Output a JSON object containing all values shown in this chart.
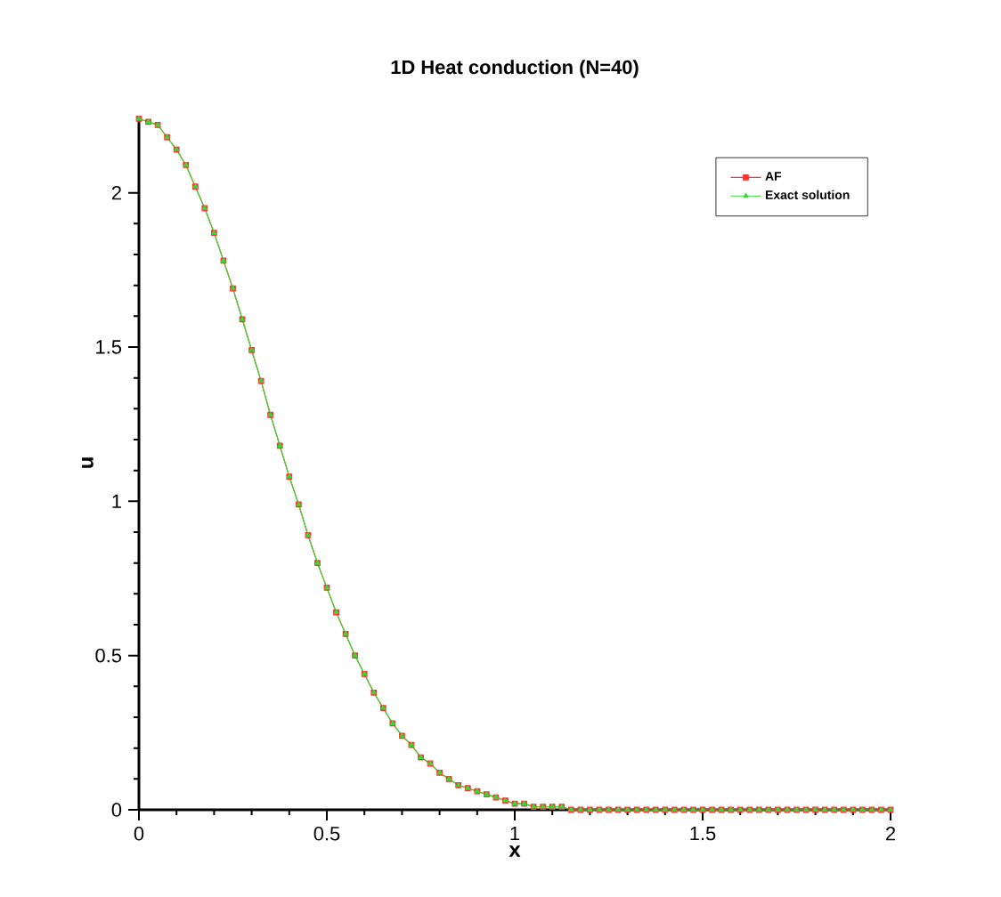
{
  "chart_data": {
    "type": "line",
    "title": "1D Heat conduction (N=40)",
    "xlabel": "x",
    "ylabel": "u",
    "x": [
      0,
      0.025,
      0.05,
      0.075,
      0.1,
      0.125,
      0.15,
      0.175,
      0.2,
      0.225,
      0.25,
      0.275,
      0.3,
      0.325,
      0.35,
      0.375,
      0.4,
      0.425,
      0.45,
      0.475,
      0.5,
      0.525,
      0.55,
      0.575,
      0.6,
      0.625,
      0.65,
      0.675,
      0.7,
      0.725,
      0.75,
      0.775,
      0.8,
      0.825,
      0.85,
      0.875,
      0.9,
      0.925,
      0.95,
      0.975,
      1,
      1.025,
      1.05,
      1.075,
      1.1,
      1.125,
      1.15,
      1.175,
      1.2,
      1.225,
      1.25,
      1.275,
      1.3,
      1.325,
      1.35,
      1.375,
      1.4,
      1.425,
      1.45,
      1.475,
      1.5,
      1.525,
      1.55,
      1.575,
      1.6,
      1.625,
      1.65,
      1.675,
      1.7,
      1.725,
      1.75,
      1.775,
      1.8,
      1.825,
      1.85,
      1.875,
      1.9,
      1.925,
      1.95,
      1.975,
      2
    ],
    "series": [
      {
        "name": "AF",
        "color": "#ff3333",
        "marker": "square",
        "values": [
          2.24,
          2.23,
          2.22,
          2.18,
          2.14,
          2.09,
          2.02,
          1.95,
          1.87,
          1.78,
          1.69,
          1.59,
          1.49,
          1.39,
          1.28,
          1.18,
          1.08,
          0.99,
          0.89,
          0.8,
          0.72,
          0.64,
          0.57,
          0.5,
          0.44,
          0.38,
          0.33,
          0.28,
          0.24,
          0.21,
          0.17,
          0.15,
          0.12,
          0.1,
          0.08,
          0.07,
          0.06,
          0.05,
          0.04,
          0.03,
          0.02,
          0.02,
          0.01,
          0.01,
          0.01,
          0.01,
          0,
          0,
          0,
          0,
          0,
          0,
          0,
          0,
          0,
          0,
          0,
          0,
          0,
          0,
          0,
          0,
          0,
          0,
          0,
          0,
          0,
          0,
          0,
          0,
          0,
          0,
          0,
          0,
          0,
          0,
          0,
          0,
          0,
          0,
          0
        ]
      },
      {
        "name": "Exact solution",
        "color": "#33dd33",
        "marker": "triangle",
        "values": [
          2.24,
          2.23,
          2.22,
          2.18,
          2.14,
          2.09,
          2.02,
          1.95,
          1.87,
          1.78,
          1.69,
          1.59,
          1.49,
          1.39,
          1.28,
          1.18,
          1.08,
          0.99,
          0.89,
          0.8,
          0.72,
          0.64,
          0.57,
          0.5,
          0.44,
          0.38,
          0.33,
          0.28,
          0.24,
          0.21,
          0.17,
          0.15,
          0.12,
          0.1,
          0.08,
          0.07,
          0.06,
          0.05,
          0.04,
          0.03,
          0.02,
          0.02,
          0.01,
          0.01,
          0.01,
          0.01,
          0,
          0,
          0,
          0,
          0,
          0,
          0,
          0,
          0,
          0,
          0,
          0,
          0,
          0,
          0,
          0,
          0,
          0,
          0,
          0,
          0,
          0,
          0,
          0,
          0,
          0,
          0,
          0,
          0,
          0,
          0,
          0,
          0,
          0,
          0
        ]
      }
    ],
    "xlim": [
      0,
      2
    ],
    "ylim": [
      0,
      2.25
    ],
    "xticks": [
      0,
      0.5,
      1,
      1.5,
      2
    ],
    "yticks": [
      0,
      0.5,
      1,
      1.5,
      2
    ],
    "legend": "top right",
    "grid": false,
    "line_style": "solid"
  }
}
